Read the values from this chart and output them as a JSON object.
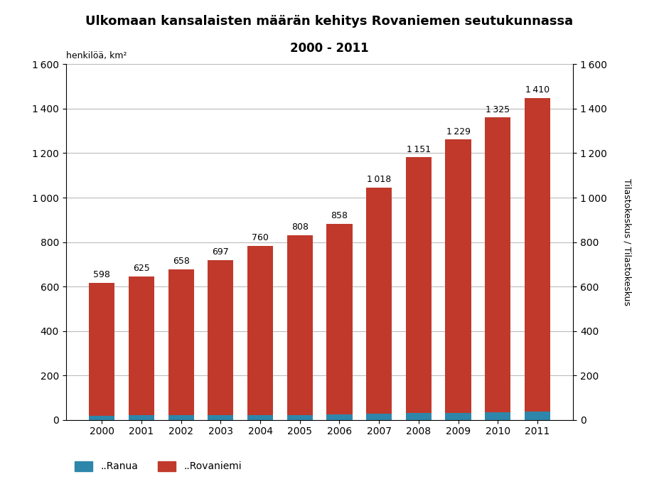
{
  "title_line1": "Ulkomaan kansalaisten määrän kehitys Rovaniemen seutukunnassa",
  "title_line2": "2000 - 2011",
  "years": [
    2000,
    2001,
    2002,
    2003,
    2004,
    2005,
    2006,
    2007,
    2008,
    2009,
    2010,
    2011
  ],
  "rovaniemi": [
    598,
    625,
    658,
    697,
    760,
    808,
    858,
    1018,
    1151,
    1229,
    1325,
    1410
  ],
  "ranua": [
    18,
    20,
    20,
    22,
    22,
    23,
    25,
    28,
    30,
    32,
    35,
    38
  ],
  "rovaniemi_color": "#c0392b",
  "ranua_color": "#2e86ab",
  "ylabel_left": "henkilöä, km²",
  "ylabel_right": "Tilastokeskus / Tilastokeskus",
  "ylim": [
    0,
    1600
  ],
  "yticks": [
    0,
    200,
    400,
    600,
    800,
    1000,
    1200,
    1400,
    1600
  ],
  "legend_ranua": "..Ranua",
  "legend_rovaniemi": "..Rovaniemi",
  "background_color": "#ffffff",
  "grid_color": "#bbbbbb"
}
